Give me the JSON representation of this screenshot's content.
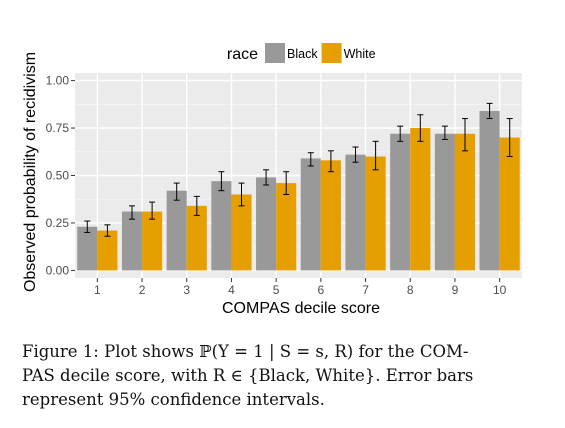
{
  "chart_data": {
    "type": "bar",
    "xlabel": "COMPAS decile score",
    "ylabel": "Observed probability of recidivism",
    "ylim": [
      -0.04,
      1.04
    ],
    "yticks": [
      "0.00",
      "0.25",
      "0.50",
      "0.75",
      "1.00"
    ],
    "categories": [
      "1",
      "2",
      "3",
      "4",
      "5",
      "6",
      "7",
      "8",
      "9",
      "10"
    ],
    "legend": {
      "title": "race",
      "placement": "top"
    },
    "grid": true,
    "series": [
      {
        "name": "Black",
        "color": "#999999",
        "values": [
          0.23,
          0.31,
          0.42,
          0.47,
          0.49,
          0.59,
          0.61,
          0.72,
          0.72,
          0.84
        ],
        "err_low": [
          0.2,
          0.27,
          0.37,
          0.42,
          0.45,
          0.55,
          0.57,
          0.68,
          0.69,
          0.8
        ],
        "err_high": [
          0.26,
          0.34,
          0.46,
          0.52,
          0.53,
          0.62,
          0.65,
          0.76,
          0.76,
          0.88
        ]
      },
      {
        "name": "White",
        "color": "#E69F00",
        "values": [
          0.21,
          0.31,
          0.34,
          0.4,
          0.46,
          0.58,
          0.6,
          0.75,
          0.72,
          0.7
        ],
        "err_low": [
          0.18,
          0.27,
          0.29,
          0.34,
          0.4,
          0.52,
          0.53,
          0.68,
          0.63,
          0.6
        ],
        "err_high": [
          0.24,
          0.36,
          0.39,
          0.46,
          0.52,
          0.63,
          0.68,
          0.82,
          0.8,
          0.8
        ]
      }
    ]
  },
  "caption": {
    "lines": [
      "Figure 1: Plot shows ℙ(Y = 1 | S = s, R) for the COM-",
      "PAS decile score, with R ∈ {Black, White}. Error bars",
      "represent 95% confidence intervals."
    ]
  }
}
